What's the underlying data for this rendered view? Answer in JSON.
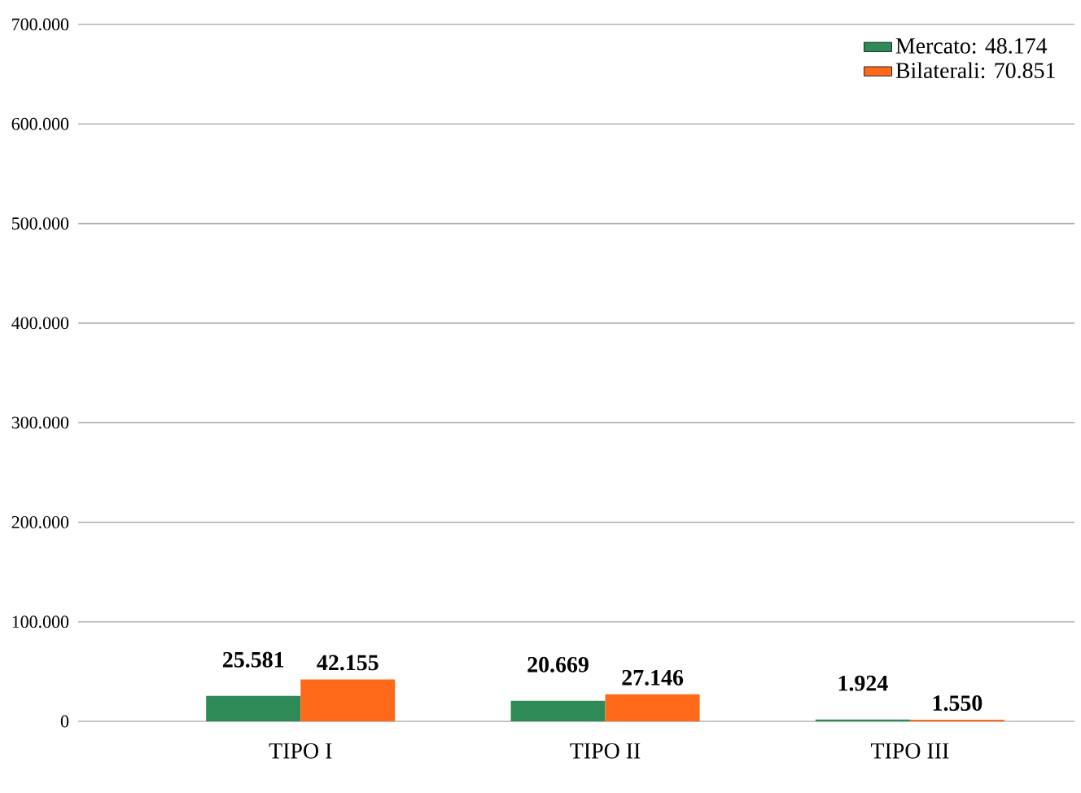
{
  "chart_data": {
    "type": "bar",
    "categories": [
      "TIPO I",
      "TIPO II",
      "TIPO III"
    ],
    "series": [
      {
        "name": "Mercato:   48.174",
        "color": "#2e8b57",
        "values": [
          25581,
          20669,
          1924
        ],
        "value_labels": [
          "25.581",
          "20.669",
          "1.924"
        ]
      },
      {
        "name": "Bilaterali:   70.851",
        "color": "#ff6a1a",
        "values": [
          42155,
          27146,
          1550
        ],
        "value_labels": [
          "42.155",
          "27.146",
          "1.550"
        ]
      }
    ],
    "ylim": [
      0,
      700000
    ],
    "yticks": [
      {
        "value": 0,
        "label": "0"
      },
      {
        "value": 100000,
        "label": "100.000"
      },
      {
        "value": 200000,
        "label": "200.000"
      },
      {
        "value": 300000,
        "label": "300.000"
      },
      {
        "value": 400000,
        "label": "400.000"
      },
      {
        "value": 500000,
        "label": "500.000"
      },
      {
        "value": 600000,
        "label": "600.000"
      },
      {
        "value": 700000,
        "label": "700.000"
      }
    ],
    "grid": "y",
    "legend": "top right"
  }
}
